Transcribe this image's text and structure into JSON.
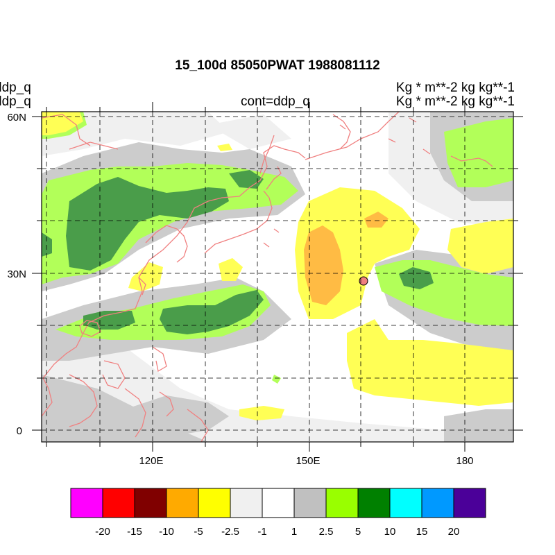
{
  "title": "15_100d 85050PWAT  1988081112",
  "left_labels": [
    "ddp_q",
    "ddp_q"
  ],
  "center_label": "cont=ddp_q",
  "right_labels": [
    "Kg  * m**-2 kg kg**-1",
    "Kg  * m**-2 kg kg**-1"
  ],
  "lat_ticks": [
    "60N",
    "30N",
    "0"
  ],
  "lon_ticks": [
    "120E",
    "150E",
    "180"
  ],
  "colorbar": {
    "colors": [
      "#ff00ff",
      "#ff0000",
      "#800000",
      "#ffaa00",
      "#ffff00",
      "#f0f0f0",
      "#ffffff",
      "#c0c0c0",
      "#99ff00",
      "#008000",
      "#00ffff",
      "#0099ff",
      "#4b0099"
    ],
    "labels": [
      "-20",
      "-15",
      "-10",
      "-5",
      "-2.5",
      "-1",
      "1",
      "2.5",
      "5",
      "10",
      "15",
      "20"
    ]
  },
  "map_colors": {
    "light_gray": "#f0f0f0",
    "gray": "#cccccc",
    "light_green": "#b2ff59",
    "dark_green": "#4a9d4a",
    "yellow": "#ffff55",
    "orange": "#ffbb44",
    "coast": "#f08080",
    "marker": "#f08080"
  }
}
